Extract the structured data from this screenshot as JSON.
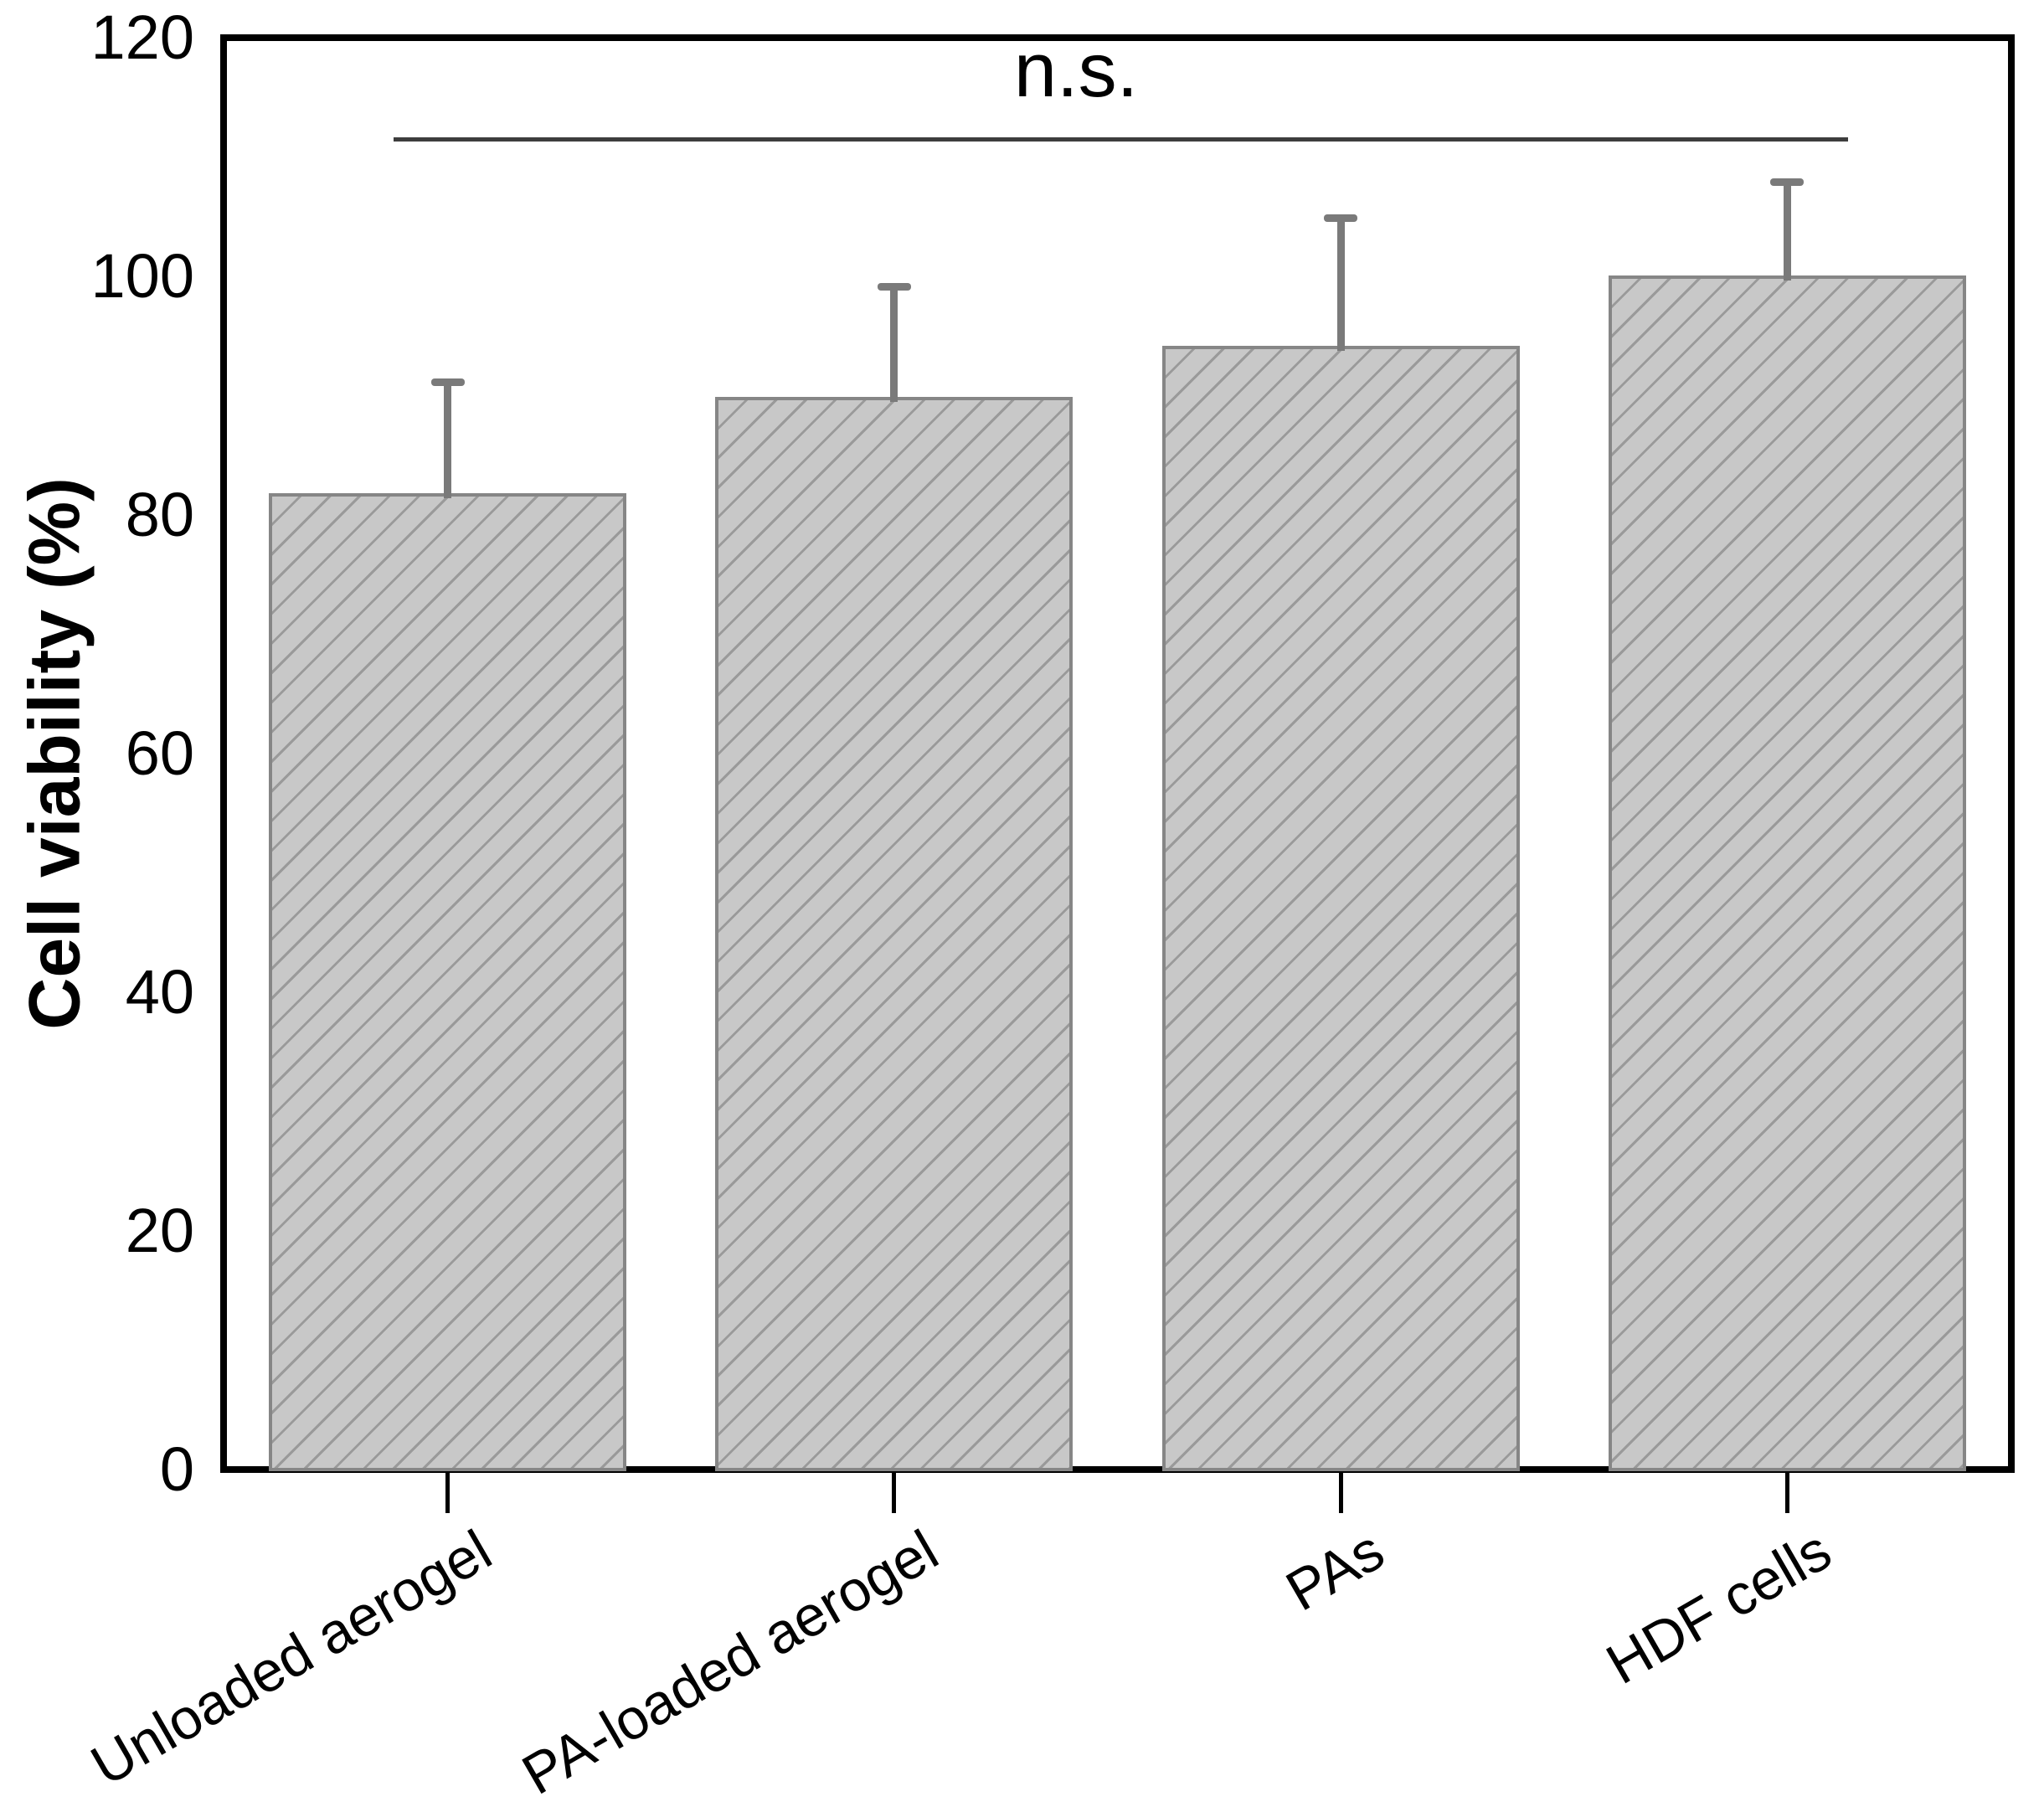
{
  "chart_data": {
    "type": "bar",
    "title": "",
    "ylabel": "Cell viability (%)",
    "xlabel": "",
    "categories": [
      "Unloaded aerogel",
      "PA-loaded aerogel",
      "PAs",
      "HDF cells"
    ],
    "values": [
      81.8,
      89.9,
      94.2,
      100.1
    ],
    "errors_plus": [
      9.3,
      9.2,
      10.7,
      7.8
    ],
    "ylim": [
      0,
      120
    ],
    "yticks": [
      0,
      20,
      40,
      60,
      80,
      100,
      120
    ],
    "grid": false,
    "legend": false,
    "annotation": {
      "label": "n.s.",
      "line_y_value": 111.5
    },
    "colors": {
      "bar_fill": "#c8c8c8",
      "bar_hatch": "#9a9a9a",
      "bar_edge": "#868686",
      "error_bar": "#7a7a7a",
      "axis": "#000000",
      "annotation_line": "#3d3d3d",
      "background": "#ffffff"
    }
  }
}
